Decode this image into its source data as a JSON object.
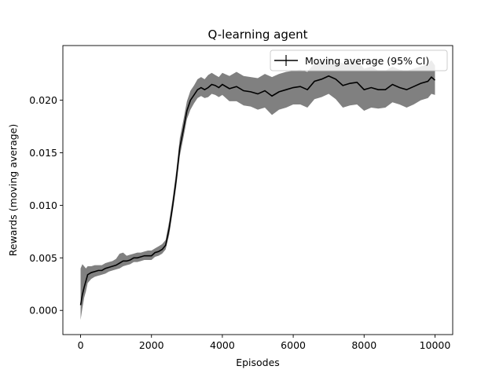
{
  "chart_data": {
    "type": "line",
    "title": "Q-learning agent",
    "xlabel": "Episodes",
    "ylabel": "Rewards (moving average)",
    "xlim": [
      -500,
      10500
    ],
    "ylim": [
      -0.0023,
      0.0252
    ],
    "xticks": [
      0,
      2000,
      4000,
      6000,
      8000,
      10000
    ],
    "xtick_labels": [
      "0",
      "2000",
      "4000",
      "6000",
      "8000",
      "10000"
    ],
    "yticks": [
      0.0,
      0.005,
      0.01,
      0.015,
      0.02
    ],
    "ytick_labels": [
      "0.000",
      "0.005",
      "0.010",
      "0.015",
      "0.020"
    ],
    "grid": false,
    "legend_position": "top-right",
    "series": [
      {
        "name": "Moving average (95% CI)",
        "color": "#000000",
        "band_color": "#808080",
        "x": [
          0,
          50,
          100,
          150,
          200,
          300,
          400,
          500,
          600,
          700,
          800,
          900,
          1000,
          1100,
          1200,
          1300,
          1400,
          1500,
          1600,
          1700,
          1800,
          1900,
          2000,
          2100,
          2200,
          2300,
          2400,
          2500,
          2600,
          2700,
          2800,
          2900,
          3000,
          3100,
          3200,
          3300,
          3400,
          3500,
          3600,
          3700,
          3800,
          3900,
          4000,
          4200,
          4400,
          4600,
          4800,
          5000,
          5200,
          5400,
          5600,
          5800,
          6000,
          6200,
          6400,
          6600,
          6800,
          7000,
          7200,
          7400,
          7600,
          7800,
          8000,
          8200,
          8400,
          8600,
          8800,
          9000,
          9200,
          9400,
          9600,
          9800,
          9900,
          10000
        ],
        "y": [
          0.0005,
          0.0015,
          0.0022,
          0.0028,
          0.0034,
          0.0036,
          0.0037,
          0.0038,
          0.0038,
          0.004,
          0.0041,
          0.0042,
          0.0043,
          0.0045,
          0.0047,
          0.0047,
          0.0048,
          0.005,
          0.005,
          0.0051,
          0.0052,
          0.0052,
          0.0052,
          0.0055,
          0.0056,
          0.0058,
          0.0062,
          0.0078,
          0.01,
          0.0125,
          0.0155,
          0.0172,
          0.019,
          0.02,
          0.0205,
          0.021,
          0.0212,
          0.021,
          0.0212,
          0.0215,
          0.0214,
          0.0212,
          0.0215,
          0.0211,
          0.0213,
          0.0209,
          0.0208,
          0.0206,
          0.0209,
          0.0204,
          0.0208,
          0.021,
          0.0212,
          0.0213,
          0.021,
          0.0218,
          0.022,
          0.0223,
          0.022,
          0.0214,
          0.0216,
          0.0217,
          0.021,
          0.0212,
          0.021,
          0.021,
          0.0215,
          0.0212,
          0.021,
          0.0213,
          0.0216,
          0.0218,
          0.0222,
          0.0219
        ],
        "lower": [
          -0.0009,
          0.0002,
          0.0012,
          0.0018,
          0.0026,
          0.003,
          0.0032,
          0.0033,
          0.0034,
          0.0035,
          0.0037,
          0.0038,
          0.0039,
          0.004,
          0.0042,
          0.0043,
          0.0044,
          0.0046,
          0.0046,
          0.0047,
          0.0048,
          0.0048,
          0.0048,
          0.0051,
          0.0052,
          0.0054,
          0.0058,
          0.0072,
          0.0094,
          0.0118,
          0.0147,
          0.0164,
          0.0182,
          0.0191,
          0.0197,
          0.0202,
          0.0204,
          0.0202,
          0.0203,
          0.0206,
          0.0205,
          0.0203,
          0.0205,
          0.0199,
          0.0199,
          0.0195,
          0.0194,
          0.0191,
          0.0193,
          0.0186,
          0.0191,
          0.0193,
          0.0196,
          0.0196,
          0.0193,
          0.0201,
          0.0203,
          0.0206,
          0.0201,
          0.0193,
          0.0195,
          0.0196,
          0.019,
          0.0193,
          0.0192,
          0.0193,
          0.0198,
          0.0196,
          0.0193,
          0.0196,
          0.02,
          0.0202,
          0.0206,
          0.0205
        ],
        "upper": [
          0.004,
          0.0044,
          0.0042,
          0.004,
          0.0042,
          0.0042,
          0.0043,
          0.0043,
          0.0043,
          0.0045,
          0.0046,
          0.0047,
          0.0049,
          0.0054,
          0.0055,
          0.0052,
          0.0053,
          0.0054,
          0.0055,
          0.0055,
          0.0056,
          0.0057,
          0.0057,
          0.0059,
          0.0061,
          0.0063,
          0.0067,
          0.0085,
          0.0107,
          0.0133,
          0.0164,
          0.0181,
          0.0199,
          0.0209,
          0.0214,
          0.022,
          0.0222,
          0.022,
          0.0224,
          0.0226,
          0.0224,
          0.0222,
          0.0226,
          0.0223,
          0.0227,
          0.0223,
          0.0222,
          0.0221,
          0.0225,
          0.0222,
          0.0225,
          0.0227,
          0.0228,
          0.0229,
          0.0227,
          0.0235,
          0.0237,
          0.024,
          0.0238,
          0.0235,
          0.0236,
          0.0238,
          0.023,
          0.0232,
          0.0228,
          0.0228,
          0.0232,
          0.0229,
          0.0228,
          0.023,
          0.0232,
          0.0235,
          0.0238,
          0.0233
        ]
      }
    ]
  }
}
